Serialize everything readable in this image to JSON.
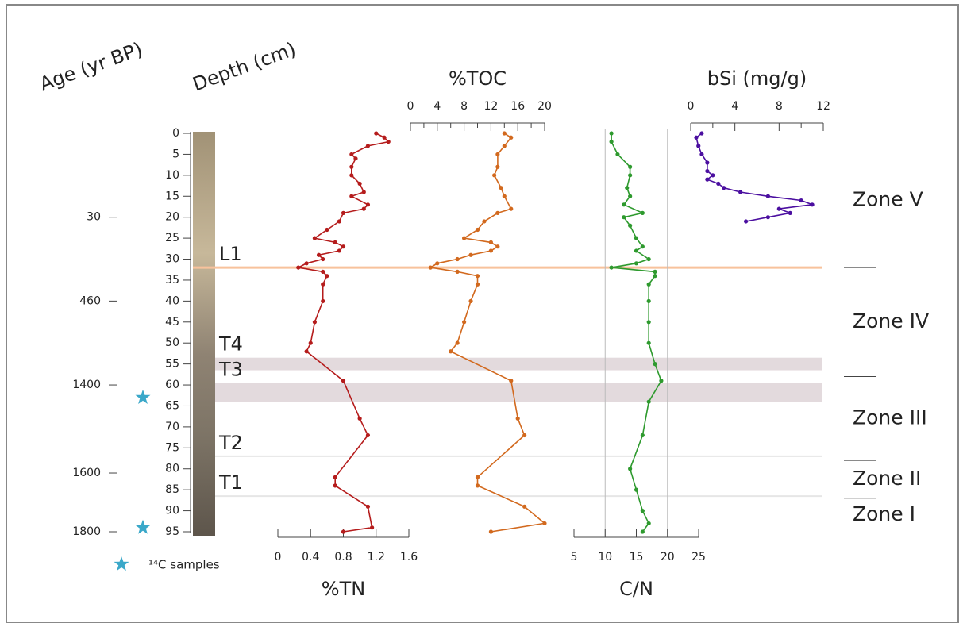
{
  "chart_data": {
    "type": "depth-profile",
    "ylabel": "Depth (cm)",
    "ylim": [
      0,
      95
    ],
    "yticks": [
      0,
      5,
      10,
      15,
      20,
      25,
      30,
      35,
      40,
      45,
      50,
      55,
      60,
      65,
      70,
      75,
      80,
      85,
      90,
      95
    ],
    "age_label": "Age (yr BP)",
    "age_ticks": [
      {
        "value": 20,
        "label": "30"
      },
      {
        "value": 40,
        "label": "460"
      },
      {
        "value": 60,
        "label": "1400"
      },
      {
        "value": 81,
        "label": "1600"
      },
      {
        "value": 95,
        "label": "1800"
      }
    ],
    "c14_label": "¹⁴C samples",
    "c14_depths": [
      63,
      94
    ],
    "horizons": [
      {
        "label": "L1",
        "from": 32,
        "to": 32,
        "color": "#f8c29c"
      },
      {
        "label": "T4",
        "from": 53.5,
        "to": 56.5,
        "color": "#e3dadd"
      },
      {
        "label": "T3",
        "from": 59.5,
        "to": 64,
        "color": "#e3dadd"
      },
      {
        "label": "T2",
        "from": 77,
        "to": 77,
        "color": "#e6e6e6"
      },
      {
        "label": "T1",
        "from": 86.5,
        "to": 86.5,
        "color": "#e6e6e6"
      }
    ],
    "zones": [
      {
        "label": "Zone V",
        "from": 0,
        "to": 32
      },
      {
        "label": "Zone IV",
        "from": 32,
        "to": 58
      },
      {
        "label": "Zone III",
        "from": 58,
        "to": 78
      },
      {
        "label": "Zone II",
        "from": 78,
        "to": 87
      },
      {
        "label": "Zone I",
        "from": 87,
        "to": 95
      }
    ],
    "panels": [
      {
        "label": "%TN",
        "axis": "bottom",
        "xlim": [
          0,
          1.6
        ],
        "xticks": [
          0,
          0.4,
          0.8,
          1.2,
          1.6
        ],
        "color": "#b51c1c",
        "depths": [
          0,
          1,
          2,
          3,
          5,
          6,
          8,
          10,
          12,
          14,
          15,
          17,
          18,
          19,
          21,
          23,
          25,
          26,
          27,
          28,
          29,
          30,
          31,
          32,
          33,
          34,
          36,
          40,
          45,
          50,
          52,
          59,
          68,
          72,
          82,
          84,
          89,
          94,
          95
        ],
        "values": [
          1.2,
          1.3,
          1.35,
          1.1,
          0.9,
          0.95,
          0.9,
          0.9,
          1.0,
          1.05,
          0.9,
          1.1,
          1.05,
          0.8,
          0.75,
          0.6,
          0.45,
          0.7,
          0.8,
          0.75,
          0.5,
          0.55,
          0.35,
          0.25,
          0.55,
          0.6,
          0.55,
          0.55,
          0.45,
          0.4,
          0.35,
          0.8,
          1.0,
          1.1,
          0.7,
          0.7,
          1.1,
          1.15,
          0.8
        ]
      },
      {
        "label": "%TOC",
        "axis": "top",
        "xlim": [
          0,
          20
        ],
        "xticks": [
          0,
          4,
          8,
          12,
          16,
          20
        ],
        "minor": [
          2,
          6,
          10,
          14,
          18
        ],
        "color": "#d2691e",
        "depths": [
          0,
          1,
          3,
          5,
          8,
          10,
          13,
          15,
          18,
          19,
          21,
          23,
          25,
          26,
          27,
          28,
          29,
          30,
          31,
          32,
          33,
          34,
          36,
          40,
          45,
          50,
          52,
          59,
          68,
          72,
          82,
          84,
          89,
          93,
          95
        ],
        "values": [
          14,
          15,
          14,
          13,
          13,
          12.5,
          13.5,
          14,
          15,
          13,
          11,
          10,
          8,
          12,
          13,
          12,
          9,
          7,
          4,
          3,
          7,
          10,
          10,
          9,
          8,
          7,
          6,
          15,
          16,
          17,
          10,
          10,
          17,
          20,
          12
        ]
      },
      {
        "label": "C/N",
        "axis": "bottom",
        "xlim": [
          5,
          25
        ],
        "xticks": [
          5,
          10,
          15,
          20,
          25
        ],
        "grid": [
          10,
          20
        ],
        "color": "#2e9a2e",
        "depths": [
          0,
          2,
          5,
          8,
          10,
          13,
          15,
          17,
          19,
          20,
          22,
          25,
          27,
          28,
          30,
          31,
          32,
          33,
          34,
          36,
          40,
          45,
          50,
          55,
          59,
          64,
          72,
          80,
          85,
          90,
          93,
          95
        ],
        "values": [
          11,
          11,
          12,
          14,
          14,
          13.5,
          14,
          13,
          16,
          13,
          14,
          15,
          16,
          15,
          17,
          15,
          11,
          18,
          18,
          17,
          17,
          17,
          17,
          18,
          19,
          17,
          16,
          14,
          15,
          16,
          17,
          16
        ]
      },
      {
        "label": "bSi (mg/g)",
        "axis": "top",
        "xlim": [
          0,
          12
        ],
        "xticks": [
          0,
          4,
          8,
          12
        ],
        "minor": [
          2,
          6,
          10
        ],
        "color": "#4b0fa0",
        "depths": [
          0,
          1,
          3,
          5,
          7,
          9,
          10,
          11,
          12,
          13,
          14,
          15,
          16,
          17,
          18,
          19,
          20,
          21
        ],
        "values": [
          1,
          0.5,
          0.7,
          1,
          1.5,
          1.5,
          2,
          1.5,
          2.5,
          3,
          4.5,
          7,
          10,
          11,
          8,
          9,
          7,
          5
        ]
      }
    ]
  }
}
